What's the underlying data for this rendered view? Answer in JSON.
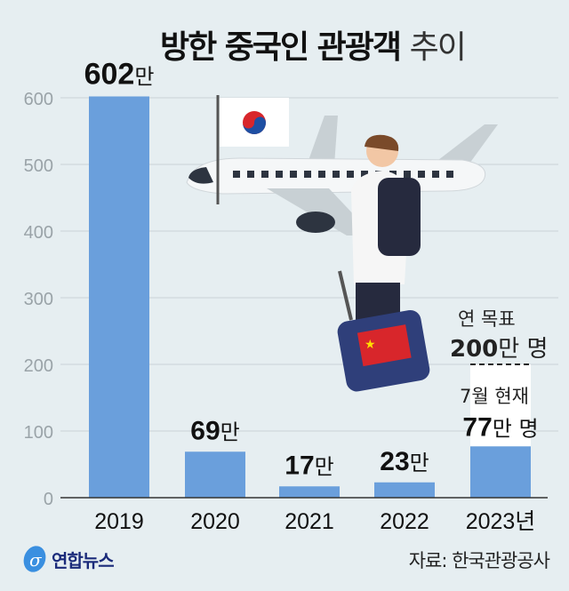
{
  "title": {
    "bold": "방한 중국인 관광객",
    "light": "추이"
  },
  "source": "자료: 한국관광공사",
  "logo": "연합뉴스",
  "colors": {
    "bar": "#6a9fdc",
    "background": "#e6eef1",
    "target_bar": "#ffffff"
  },
  "chart_data": {
    "type": "bar",
    "categories": [
      "2019",
      "2020",
      "2021",
      "2022",
      "2023년"
    ],
    "values": [
      602,
      69,
      17,
      23,
      77
    ],
    "data_labels": [
      {
        "num": "602",
        "unit": "만"
      },
      {
        "num": "69",
        "unit": "만"
      },
      {
        "num": "17",
        "unit": "만"
      },
      {
        "num": "23",
        "unit": "만"
      },
      {
        "num": "77",
        "unit": "만 명"
      }
    ],
    "unit": "만 명",
    "ylim": [
      0,
      600
    ],
    "yticks": [
      0,
      100,
      200,
      300,
      400,
      500,
      600
    ],
    "grid": true,
    "target": {
      "category": "2023년",
      "value": 200,
      "label_top": "연 목표",
      "label_value": "200",
      "label_unit": "만 명"
    },
    "current_label": "7월 현재"
  },
  "illustration": [
    "airplane",
    "korean-flag",
    "traveler-with-backpack",
    "suitcase-with-chinese-flag"
  ]
}
